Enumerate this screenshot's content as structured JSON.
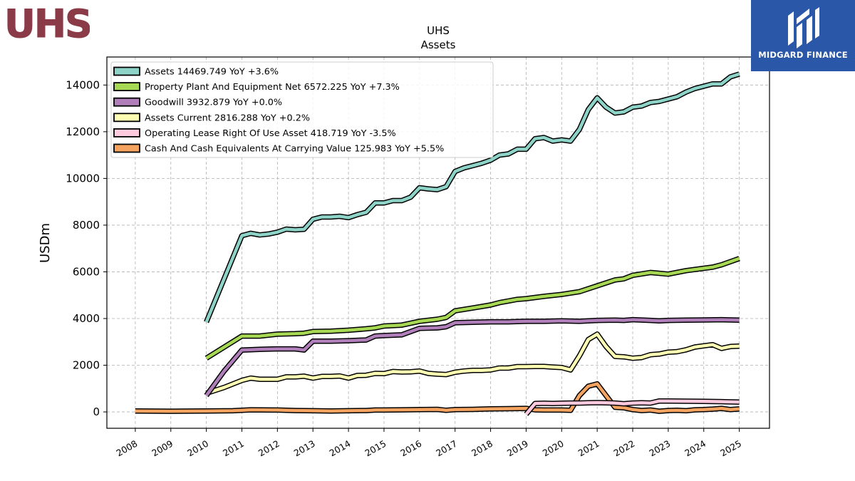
{
  "brand": {
    "company_logo_text": "UHS",
    "company_logo_color": "#8b3a47",
    "publisher_text": "MIDGARD FINANCE",
    "publisher_bg": "#2a57a8"
  },
  "chart_data": {
    "type": "line",
    "title": "UHS",
    "subtitle": "Assets",
    "xlabel": "",
    "ylabel": "USDm",
    "xlim": [
      2007.2,
      2025.85
    ],
    "ylim": [
      -700,
      15200
    ],
    "x_ticks": [
      "2008",
      "2009",
      "2010",
      "2011",
      "2012",
      "2013",
      "2014",
      "2015",
      "2016",
      "2017",
      "2018",
      "2019",
      "2020",
      "2021",
      "2022",
      "2023",
      "2024",
      "2025"
    ],
    "y_ticks": [
      0,
      2000,
      4000,
      6000,
      8000,
      10000,
      12000,
      14000
    ],
    "grid": true,
    "legend_position": "top-left",
    "series": [
      {
        "name": "Assets",
        "legend": "Assets  14469.749 YoY +3.6%",
        "color": "#8dd3c7",
        "x": [
          2010.0,
          2011.0,
          2011.25,
          2011.5,
          2011.75,
          2012.0,
          2012.25,
          2012.5,
          2012.75,
          2013.0,
          2013.25,
          2013.5,
          2013.75,
          2014.0,
          2014.25,
          2014.5,
          2014.75,
          2015.0,
          2015.25,
          2015.5,
          2015.75,
          2016.0,
          2016.25,
          2016.5,
          2016.75,
          2017.0,
          2017.25,
          2017.5,
          2017.75,
          2018.0,
          2018.25,
          2018.5,
          2018.75,
          2019.0,
          2019.25,
          2019.5,
          2019.75,
          2020.0,
          2020.25,
          2020.5,
          2020.75,
          2021.0,
          2021.25,
          2021.5,
          2021.75,
          2022.0,
          2022.25,
          2022.5,
          2022.75,
          2023.0,
          2023.25,
          2023.5,
          2023.75,
          2024.0,
          2024.25,
          2024.5,
          2024.75,
          2025.0
        ],
        "y": [
          3850,
          7550,
          7650,
          7580,
          7620,
          7700,
          7830,
          7800,
          7820,
          8250,
          8350,
          8350,
          8380,
          8320,
          8450,
          8550,
          8950,
          8950,
          9050,
          9050,
          9200,
          9600,
          9550,
          9520,
          9650,
          10300,
          10450,
          10550,
          10650,
          10780,
          11000,
          11050,
          11250,
          11250,
          11700,
          11750,
          11600,
          11650,
          11600,
          12100,
          12950,
          13450,
          13050,
          12800,
          12850,
          13050,
          13100,
          13250,
          13300,
          13400,
          13500,
          13700,
          13850,
          13950,
          14050,
          14050,
          14350,
          14470
        ]
      },
      {
        "name": "Property Plant And Equipment Net",
        "legend": "Property Plant And Equipment Net  6572.225 YoY +7.3%",
        "color": "#a6d854",
        "x": [
          2010.0,
          2011.0,
          2011.5,
          2012.0,
          2012.5,
          2012.75,
          2013.0,
          2013.5,
          2014.0,
          2014.5,
          2014.75,
          2015.0,
          2015.5,
          2016.0,
          2016.5,
          2016.75,
          2017.0,
          2017.5,
          2018.0,
          2018.25,
          2018.5,
          2018.75,
          2019.0,
          2019.5,
          2020.0,
          2020.5,
          2021.0,
          2021.5,
          2021.75,
          2022.0,
          2022.5,
          2023.0,
          2023.5,
          2024.0,
          2024.25,
          2024.5,
          2025.0
        ],
        "y": [
          2300,
          3250,
          3250,
          3330,
          3350,
          3370,
          3440,
          3460,
          3500,
          3560,
          3600,
          3680,
          3720,
          3880,
          3970,
          4050,
          4330,
          4450,
          4580,
          4680,
          4750,
          4820,
          4850,
          4950,
          5030,
          5150,
          5400,
          5650,
          5700,
          5850,
          5970,
          5900,
          6050,
          6150,
          6200,
          6300,
          6570
        ]
      },
      {
        "name": "Goodwill",
        "legend": "Goodwill  3932.879 YoY +0.0%",
        "color": "#b07fba",
        "x": [
          2010.0,
          2010.5,
          2011.0,
          2011.5,
          2012.0,
          2012.5,
          2012.75,
          2013.0,
          2013.5,
          2014.0,
          2014.5,
          2014.75,
          2015.0,
          2015.5,
          2016.0,
          2016.5,
          2016.75,
          2017.0,
          2017.5,
          2018.0,
          2018.5,
          2019.0,
          2019.5,
          2020.0,
          2020.5,
          2021.0,
          2021.5,
          2021.75,
          2022.0,
          2022.5,
          2022.75,
          2023.0,
          2023.5,
          2024.0,
          2024.5,
          2025.0
        ],
        "y": [
          700,
          1750,
          2650,
          2680,
          2700,
          2700,
          2650,
          3030,
          3030,
          3050,
          3080,
          3250,
          3270,
          3300,
          3580,
          3600,
          3650,
          3820,
          3840,
          3860,
          3860,
          3880,
          3880,
          3900,
          3880,
          3920,
          3930,
          3920,
          3950,
          3920,
          3900,
          3920,
          3930,
          3940,
          3950,
          3930
        ]
      },
      {
        "name": "Assets Current",
        "legend": "Assets Current  2816.288 YoY +0.2%",
        "color": "#ffffb3",
        "x": [
          2010.0,
          2010.5,
          2011.0,
          2011.25,
          2011.5,
          2012.0,
          2012.25,
          2012.5,
          2012.75,
          2013.0,
          2013.25,
          2013.5,
          2013.75,
          2014.0,
          2014.25,
          2014.5,
          2014.75,
          2015.0,
          2015.25,
          2015.5,
          2015.75,
          2016.0,
          2016.25,
          2016.5,
          2016.75,
          2017.0,
          2017.25,
          2017.5,
          2017.75,
          2018.0,
          2018.25,
          2018.5,
          2018.75,
          2019.0,
          2019.25,
          2019.5,
          2019.75,
          2020.0,
          2020.25,
          2020.5,
          2020.75,
          2021.0,
          2021.25,
          2021.5,
          2021.75,
          2022.0,
          2022.25,
          2022.5,
          2022.75,
          2023.0,
          2023.25,
          2023.5,
          2023.75,
          2024.0,
          2024.25,
          2024.5,
          2024.75,
          2025.0
        ],
        "y": [
          800,
          1050,
          1350,
          1450,
          1400,
          1400,
          1500,
          1500,
          1530,
          1450,
          1520,
          1520,
          1540,
          1450,
          1560,
          1570,
          1650,
          1640,
          1730,
          1710,
          1720,
          1750,
          1650,
          1620,
          1600,
          1700,
          1750,
          1780,
          1780,
          1800,
          1880,
          1880,
          1940,
          1940,
          1950,
          1950,
          1920,
          1900,
          1800,
          2400,
          3100,
          3330,
          2800,
          2380,
          2360,
          2300,
          2330,
          2450,
          2480,
          2560,
          2580,
          2660,
          2780,
          2830,
          2880,
          2720,
          2800,
          2816
        ]
      },
      {
        "name": "Operating Lease Right Of Use Asset",
        "legend": "Operating Lease Right Of Use Asset  418.719 YoY -3.5%",
        "color": "#ffc9de",
        "x": [
          2019.0,
          2019.25,
          2019.5,
          2019.75,
          2020.0,
          2020.25,
          2020.5,
          2020.75,
          2021.0,
          2021.25,
          2021.5,
          2021.75,
          2022.0,
          2022.25,
          2022.5,
          2022.75,
          2023.0,
          2023.5,
          2024.0,
          2024.5,
          2025.0
        ],
        "y": [
          -100,
          360,
          370,
          360,
          370,
          380,
          380,
          390,
          400,
          390,
          380,
          350,
          380,
          390,
          380,
          470,
          470,
          460,
          450,
          440,
          420
        ]
      },
      {
        "name": "Cash And Cash Equivalents At Carrying Value",
        "legend": "Cash And Cash Equivalents At Carrying Value  125.983 YoY +5.5%",
        "color": "#f4a460",
        "x": [
          2008.0,
          2009.0,
          2010.0,
          2010.75,
          2011.0,
          2011.25,
          2012.0,
          2012.5,
          2013.0,
          2013.5,
          2014.0,
          2014.5,
          2014.75,
          2015.0,
          2015.5,
          2016.0,
          2016.5,
          2016.75,
          2017.0,
          2017.5,
          2018.0,
          2018.5,
          2019.0,
          2019.25,
          2019.5,
          2020.0,
          2020.25,
          2020.5,
          2020.75,
          2021.0,
          2021.25,
          2021.5,
          2021.75,
          2022.0,
          2022.25,
          2022.5,
          2022.75,
          2023.0,
          2023.25,
          2023.5,
          2023.75,
          2024.0,
          2024.25,
          2024.5,
          2024.75,
          2025.0
        ],
        "y": [
          40,
          30,
          40,
          50,
          70,
          90,
          80,
          60,
          50,
          40,
          50,
          60,
          80,
          80,
          90,
          100,
          110,
          70,
          100,
          110,
          130,
          140,
          150,
          90,
          80,
          80,
          70,
          700,
          1100,
          1200,
          700,
          200,
          180,
          100,
          60,
          80,
          30,
          60,
          70,
          50,
          90,
          100,
          120,
          150,
          100,
          126
        ]
      }
    ]
  }
}
